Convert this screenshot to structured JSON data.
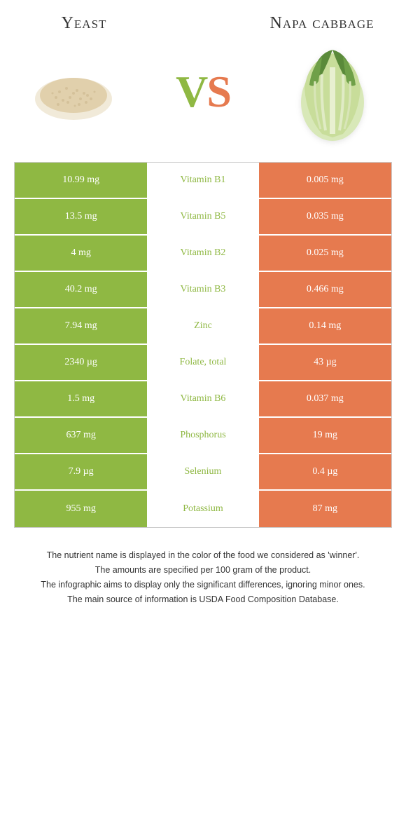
{
  "header": {
    "left_title": "Yeast",
    "right_title": "Napa cabbage"
  },
  "vs": {
    "v": "V",
    "s": "S"
  },
  "colors": {
    "green": "#8fb843",
    "orange": "#e67a4f",
    "bg": "#ffffff",
    "text": "#333333"
  },
  "table": {
    "rows": [
      {
        "left": "10.99 mg",
        "nutrient": "Vitamin B1",
        "winner": "green",
        "right": "0.005 mg"
      },
      {
        "left": "13.5 mg",
        "nutrient": "Vitamin B5",
        "winner": "green",
        "right": "0.035 mg"
      },
      {
        "left": "4 mg",
        "nutrient": "Vitamin B2",
        "winner": "green",
        "right": "0.025 mg"
      },
      {
        "left": "40.2 mg",
        "nutrient": "Vitamin B3",
        "winner": "green",
        "right": "0.466 mg"
      },
      {
        "left": "7.94 mg",
        "nutrient": "Zinc",
        "winner": "green",
        "right": "0.14 mg"
      },
      {
        "left": "2340 µg",
        "nutrient": "Folate, total",
        "winner": "green",
        "right": "43 µg"
      },
      {
        "left": "1.5 mg",
        "nutrient": "Vitamin B6",
        "winner": "green",
        "right": "0.037 mg"
      },
      {
        "left": "637 mg",
        "nutrient": "Phosphorus",
        "winner": "green",
        "right": "19 mg"
      },
      {
        "left": "7.9 µg",
        "nutrient": "Selenium",
        "winner": "green",
        "right": "0.4 µg"
      },
      {
        "left": "955 mg",
        "nutrient": "Potassium",
        "winner": "green",
        "right": "87 mg"
      }
    ]
  },
  "notes": {
    "line1": "The nutrient name is displayed in the color of the food we considered as 'winner'.",
    "line2": "The amounts are specified per 100 gram of the product.",
    "line3": "The infographic aims to display only the significant differences, ignoring minor ones.",
    "line4": "The main source of information is USDA Food Composition Database."
  }
}
